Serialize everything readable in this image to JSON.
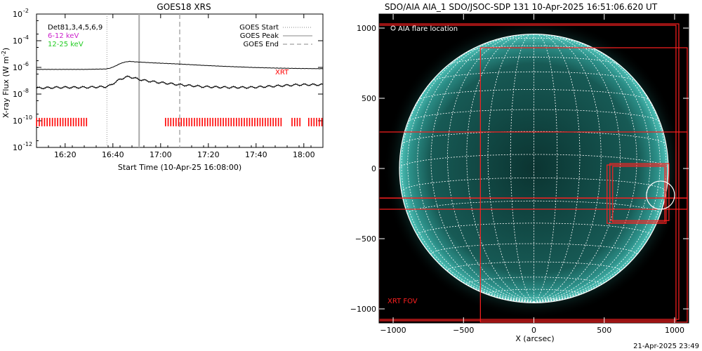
{
  "chart_data": [
    {
      "type": "line",
      "title": "GOES18 XRS",
      "xlabel": "Start Time (10-Apr-25 16:08:00)",
      "ylabel": "X-ray Flux (W m",
      "ylabel_sup": "-2",
      "ylabel_close": ")",
      "xlim": [
        0,
        120
      ],
      "x_ticks": [
        {
          "x": 12,
          "label": "16:20"
        },
        {
          "x": 32,
          "label": "16:40"
        },
        {
          "x": 52,
          "label": "17:00"
        },
        {
          "x": 72,
          "label": "17:20"
        },
        {
          "x": 92,
          "label": "17:40"
        },
        {
          "x": 112,
          "label": "18:00"
        }
      ],
      "y_scale": "log",
      "ylim_exp": [
        -12,
        -2
      ],
      "y_ticks": [
        {
          "exp": -12,
          "label": "10",
          "sup": "-12"
        },
        {
          "exp": -10,
          "label": "10",
          "sup": "-10"
        },
        {
          "exp": -8,
          "label": "10",
          "sup": "-8"
        },
        {
          "exp": -6,
          "label": "10",
          "sup": "-6"
        },
        {
          "exp": -4,
          "label": "10",
          "sup": "-4"
        },
        {
          "exp": -2,
          "label": "10",
          "sup": "-2"
        }
      ],
      "top_left_labels": [
        {
          "text": "Det81,3,4,5,6,9",
          "color": "#000000"
        },
        {
          "text": "6-12  keV",
          "color": "#cc22cc"
        },
        {
          "text": "12-25 keV",
          "color": "#22cc22"
        }
      ],
      "legend": [
        {
          "label": "GOES Start",
          "style": "dotted"
        },
        {
          "label": "GOES Peak",
          "style": "solid"
        },
        {
          "label": "GOES End",
          "style": "dashed"
        }
      ],
      "legend_position": "top-right",
      "xrt_label": "XRT",
      "event_lines": {
        "start": 29.5,
        "peak": 43,
        "end": 60
      },
      "series": [
        {
          "name": "long channel",
          "color": "#000000",
          "x": [
            0,
            10,
            20,
            29,
            31,
            33,
            35,
            37,
            39,
            41,
            43,
            46,
            50,
            55,
            60,
            70,
            80,
            90,
            100,
            110,
            120
          ],
          "log10_y": [
            -6.15,
            -6.15,
            -6.15,
            -6.12,
            -6.05,
            -5.9,
            -5.72,
            -5.6,
            -5.55,
            -5.58,
            -5.6,
            -5.63,
            -5.67,
            -5.71,
            -5.75,
            -5.85,
            -5.93,
            -6.0,
            -6.05,
            -6.08,
            -6.1
          ]
        },
        {
          "name": "short channel",
          "color": "#000000",
          "x": [
            0,
            10,
            20,
            29,
            31,
            33,
            35,
            37,
            39,
            41,
            43,
            46,
            50,
            55,
            60,
            70,
            80,
            90,
            100,
            110,
            120
          ],
          "log10_y": [
            -7.55,
            -7.5,
            -7.5,
            -7.45,
            -7.35,
            -7.1,
            -6.9,
            -6.75,
            -6.7,
            -6.8,
            -6.9,
            -7.0,
            -7.1,
            -7.2,
            -7.3,
            -7.45,
            -7.5,
            -7.5,
            -7.4,
            -7.3,
            -7.3
          ]
        }
      ],
      "xrt_coverage": {
        "color": "#ff0000",
        "log10_y": -10.1,
        "intervals": [
          [
            0,
            22
          ],
          [
            54,
            103
          ],
          [
            107,
            111
          ],
          [
            114,
            120
          ]
        ]
      }
    },
    {
      "type": "scatter",
      "title": "SDO/AIA AIA_1 SDO/JSOC-SDP 131 10-Apr-2025 16:51:06.620 UT",
      "xlabel": "X (arcsec)",
      "xlim": [
        -1100,
        1100
      ],
      "ylim": [
        -1100,
        1100
      ],
      "x_ticks": [
        -1000,
        -500,
        0,
        500,
        1000
      ],
      "x_tick_labels": [
        "−1000",
        "−500",
        "0",
        "500",
        "1000"
      ],
      "y_ticks": [
        -1000,
        -500,
        0,
        500,
        1000
      ],
      "y_tick_labels": [
        "−1000",
        "−500",
        "0",
        "500",
        "1000"
      ],
      "solar_radius": 955,
      "aia_legend": "AIA flare location",
      "fov_label": "XRT FOV",
      "flare_circle": {
        "cx": 900,
        "cy": -190,
        "r": 100
      },
      "xrt_fov_boxes": [
        {
          "x0": -1100,
          "x1": 1030,
          "y0": -1070,
          "y1": 1030
        },
        {
          "x0": -1100,
          "x1": 1010,
          "y0": -1080,
          "y1": 1020
        },
        {
          "x0": -380,
          "x1": 1090,
          "y0": -1090,
          "y1": 860
        },
        {
          "x0": -1100,
          "x1": 1090,
          "y0": -210,
          "y1": 260
        },
        {
          "x0": -1100,
          "x1": 1090,
          "y0": -290,
          "y1": -210
        },
        {
          "x0": 520,
          "x1": 940,
          "y0": -390,
          "y1": 25
        },
        {
          "x0": 540,
          "x1": 960,
          "y0": -370,
          "y1": 35
        },
        {
          "x0": 560,
          "x1": 930,
          "y0": -380,
          "y1": 15
        }
      ],
      "colors": {
        "disk": "#0d3d3a",
        "grid": "#ffffff",
        "fov": "#ff2020"
      }
    }
  ],
  "footer_timestamp": "21-Apr-2025 23:49"
}
